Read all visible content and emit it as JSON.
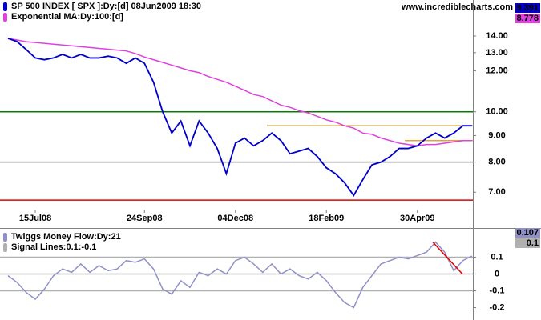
{
  "watermark": "www.incrediblecharts.com",
  "chart_data": [
    {
      "type": "line",
      "log": true,
      "categories": [
        null,
        null,
        null,
        "15Jul08",
        null,
        null,
        null,
        null,
        null,
        null,
        null,
        null,
        null,
        null,
        null,
        "24Sep08",
        null,
        null,
        null,
        null,
        null,
        null,
        null,
        null,
        null,
        "04Dec08",
        null,
        null,
        null,
        null,
        null,
        null,
        null,
        null,
        null,
        "18Feb09",
        null,
        null,
        null,
        null,
        null,
        null,
        null,
        null,
        null,
        "30Apr09",
        null,
        null,
        null,
        null,
        null,
        null
      ],
      "series": [
        {
          "name": "SP 500 INDEX [ SPX ]:Dy:[d]  08Jun2009 18:30",
          "color": "#0000c8",
          "last": 9.391,
          "values": [
            13.85,
            13.66,
            13.18,
            12.7,
            12.6,
            12.7,
            12.9,
            12.7,
            12.9,
            12.7,
            12.7,
            12.8,
            12.7,
            12.4,
            12.7,
            12.4,
            11.4,
            10.0,
            9.1,
            9.6,
            8.6,
            9.6,
            9.1,
            8.5,
            7.6,
            8.7,
            8.9,
            8.6,
            8.8,
            9.1,
            8.8,
            8.3,
            8.4,
            8.5,
            8.2,
            7.8,
            7.6,
            7.3,
            6.9,
            7.4,
            7.9,
            8.0,
            8.2,
            8.5,
            8.5,
            8.6,
            8.9,
            9.1,
            8.9,
            9.1,
            9.4,
            9.4
          ]
        },
        {
          "name": "Exponential MA:Dy:100:[d]",
          "color": "#e040e0",
          "last": 8.778,
          "values": [
            13.85,
            13.75,
            13.65,
            13.6,
            13.55,
            13.5,
            13.45,
            13.4,
            13.35,
            13.3,
            13.25,
            13.2,
            13.15,
            13.1,
            12.95,
            12.75,
            12.6,
            12.45,
            12.3,
            12.15,
            12.0,
            11.9,
            11.7,
            11.55,
            11.4,
            11.2,
            11.0,
            10.8,
            10.7,
            10.5,
            10.3,
            10.2,
            10.05,
            9.95,
            9.8,
            9.65,
            9.55,
            9.4,
            9.3,
            9.1,
            9.05,
            8.9,
            8.8,
            8.7,
            8.65,
            8.6,
            8.65,
            8.65,
            8.7,
            8.75,
            8.8,
            8.8
          ]
        }
      ],
      "hlines": [
        {
          "value": 10.0,
          "color": "#008000"
        },
        {
          "value": 8.0,
          "color": "#808080"
        },
        {
          "value": 6.76,
          "color": "#e00000"
        },
        {
          "value": 9.4,
          "color": "#b89a40"
        },
        {
          "value": 8.8,
          "color": "#e8a030"
        }
      ],
      "ylim": [
        6.48,
        15.85
      ],
      "yticks": [
        {
          "value": 7,
          "label": "7.00"
        },
        {
          "value": 8,
          "label": "8.00"
        },
        {
          "value": 9,
          "label": "9.00"
        },
        {
          "value": 10,
          "label": "10.00"
        },
        {
          "value": 12,
          "label": "12.00"
        },
        {
          "value": 13,
          "label": "13.00"
        },
        {
          "value": 14,
          "label": "14.00"
        }
      ]
    },
    {
      "type": "line",
      "log": false,
      "series": [
        {
          "name": "Twiggs Money Flow:Dy:21",
          "color": "#9090c8",
          "last": 0.107,
          "values": [
            -0.01,
            -0.05,
            -0.11,
            -0.15,
            -0.09,
            -0.01,
            0.03,
            0.01,
            0.06,
            0.01,
            0.05,
            0.02,
            0.03,
            0.08,
            0.07,
            0.09,
            0.03,
            -0.09,
            -0.12,
            -0.04,
            -0.08,
            0.01,
            -0.01,
            0.03,
            0,
            0.08,
            0.1,
            0.06,
            0.01,
            0.06,
            0,
            0.03,
            -0.01,
            -0.03,
            0.01,
            -0.04,
            -0.11,
            -0.17,
            -0.2,
            -0.08,
            -0.01,
            0.06,
            0.08,
            0.1,
            0.09,
            0.11,
            0.13,
            0.19,
            0.13,
            0.02,
            0.08,
            0.107
          ]
        }
      ],
      "signal": {
        "name": "Signal Lines:0.1:-0.1",
        "color": "#b0b0b0",
        "last": 0.1,
        "values": [
          0.1,
          -0.1
        ]
      },
      "hlines": [
        {
          "value": 0,
          "color": "#b0b0b0"
        }
      ],
      "trendline": {
        "color": "#e00000",
        "values": [
          0.19,
          0.0
        ]
      },
      "ylim": [
        -0.25,
        0.25
      ],
      "yticks": [
        0.1,
        0,
        -0.1,
        -0.2
      ]
    }
  ]
}
